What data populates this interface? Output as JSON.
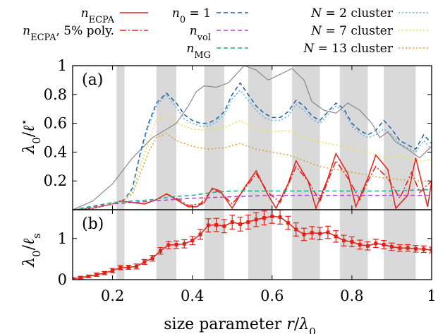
{
  "chart_data": [
    {
      "type": "line",
      "panel_label": "(a)",
      "xlabel": "size parameter r/λ0",
      "ylabel": "λ0/ℓ*",
      "xlim": [
        0.1,
        1.0
      ],
      "ylim": [
        0,
        1.0
      ],
      "yticks": [
        "0.2",
        "0.4",
        "0.6",
        "0.8",
        "1"
      ],
      "shaded_bands": [
        [
          0.21,
          0.23
        ],
        [
          0.31,
          0.36
        ],
        [
          0.43,
          0.48
        ],
        [
          0.54,
          0.6
        ],
        [
          0.65,
          0.72
        ],
        [
          0.77,
          0.84
        ],
        [
          0.88,
          0.96
        ]
      ],
      "legend": [
        {
          "label": "n_ECPA",
          "color": "#e32018",
          "style": "solid"
        },
        {
          "label": "n_ECPA, 5% poly.",
          "color": "#e32018",
          "style": "dashdot"
        },
        {
          "label": "n0 = 1",
          "color": "#1f5fa6",
          "style": "dashed"
        },
        {
          "label": "n_vol",
          "color": "#b03cd6",
          "style": "dashed"
        },
        {
          "label": "n_MG",
          "color": "#1da890",
          "style": "dashed"
        },
        {
          "label": "N = 2 cluster",
          "color": "#5aaee6",
          "style": "dotted"
        },
        {
          "label": "N = 7 cluster",
          "color": "#eedf40",
          "style": "dotted"
        },
        {
          "label": "N = 13 cluster",
          "color": "#e39a2a",
          "style": "dotted"
        }
      ],
      "series": [
        {
          "name": "n_ECPA",
          "color": "#e32018",
          "style": "solid",
          "x": [
            0.1,
            0.15,
            0.2,
            0.22,
            0.25,
            0.28,
            0.31,
            0.335,
            0.36,
            0.39,
            0.41,
            0.43,
            0.45,
            0.47,
            0.5,
            0.53,
            0.56,
            0.59,
            0.61,
            0.64,
            0.66,
            0.69,
            0.71,
            0.74,
            0.76,
            0.79,
            0.81,
            0.84,
            0.86,
            0.89,
            0.91,
            0.94,
            0.96,
            0.99,
            1.0
          ],
          "y": [
            0.0,
            0.01,
            0.04,
            0.06,
            0.05,
            0.04,
            0.07,
            0.11,
            0.07,
            0.02,
            0.02,
            0.05,
            0.15,
            0.13,
            0.01,
            0.15,
            0.27,
            0.1,
            0.01,
            0.18,
            0.34,
            0.2,
            0.01,
            0.22,
            0.39,
            0.25,
            0.02,
            0.22,
            0.38,
            0.28,
            0.01,
            0.1,
            0.36,
            0.02,
            0.2
          ]
        },
        {
          "name": "n_ECPA, 5% poly.",
          "color": "#e32018",
          "style": "dashdot",
          "x": [
            0.1,
            0.15,
            0.2,
            0.22,
            0.25,
            0.28,
            0.31,
            0.335,
            0.36,
            0.39,
            0.42,
            0.45,
            0.47,
            0.5,
            0.53,
            0.56,
            0.59,
            0.62,
            0.64,
            0.66,
            0.69,
            0.72,
            0.74,
            0.76,
            0.79,
            0.82,
            0.84,
            0.86,
            0.89,
            0.92,
            0.95,
            0.97,
            1.0
          ],
          "y": [
            0.0,
            0.01,
            0.04,
            0.06,
            0.05,
            0.04,
            0.07,
            0.11,
            0.08,
            0.03,
            0.04,
            0.14,
            0.12,
            0.04,
            0.14,
            0.25,
            0.12,
            0.05,
            0.17,
            0.3,
            0.2,
            0.06,
            0.2,
            0.34,
            0.22,
            0.07,
            0.2,
            0.3,
            0.22,
            0.08,
            0.26,
            0.12,
            0.2
          ]
        },
        {
          "name": "n0 = 1",
          "color": "#1f5fa6",
          "style": "dashed",
          "x": [
            0.1,
            0.15,
            0.2,
            0.23,
            0.25,
            0.27,
            0.29,
            0.31,
            0.335,
            0.36,
            0.38,
            0.4,
            0.42,
            0.44,
            0.46,
            0.48,
            0.5,
            0.52,
            0.54,
            0.56,
            0.58,
            0.6,
            0.62,
            0.64,
            0.66,
            0.68,
            0.7,
            0.72,
            0.74,
            0.76,
            0.78,
            0.8,
            0.82,
            0.84,
            0.86,
            0.88,
            0.9,
            0.92,
            0.94,
            0.96,
            0.98,
            1.0
          ],
          "y": [
            0.0,
            0.01,
            0.04,
            0.07,
            0.15,
            0.4,
            0.6,
            0.74,
            0.81,
            0.74,
            0.66,
            0.62,
            0.6,
            0.6,
            0.63,
            0.68,
            0.8,
            0.88,
            0.8,
            0.72,
            0.67,
            0.64,
            0.64,
            0.68,
            0.76,
            0.72,
            0.65,
            0.62,
            0.68,
            0.74,
            0.7,
            0.6,
            0.55,
            0.52,
            0.55,
            0.62,
            0.56,
            0.48,
            0.45,
            0.42,
            0.52,
            0.46
          ]
        },
        {
          "name": "n_vol",
          "color": "#b03cd6",
          "style": "dashed",
          "x": [
            0.1,
            0.2,
            0.25,
            0.3,
            0.35,
            0.4,
            0.5,
            0.6,
            0.7,
            0.8,
            0.9,
            1.0
          ],
          "y": [
            0.0,
            0.04,
            0.05,
            0.06,
            0.07,
            0.08,
            0.09,
            0.1,
            0.1,
            0.1,
            0.1,
            0.1
          ]
        },
        {
          "name": "n_MG",
          "color": "#1da890",
          "style": "dashed",
          "x": [
            0.1,
            0.2,
            0.25,
            0.3,
            0.35,
            0.4,
            0.45,
            0.5,
            0.6,
            0.7,
            0.8,
            0.9,
            1.0
          ],
          "y": [
            0.0,
            0.05,
            0.06,
            0.07,
            0.09,
            0.1,
            0.12,
            0.13,
            0.13,
            0.13,
            0.13,
            0.13,
            0.14
          ]
        },
        {
          "name": "N = 2 cluster",
          "color": "#5aaee6",
          "style": "dotted",
          "x": [
            0.1,
            0.15,
            0.2,
            0.23,
            0.25,
            0.27,
            0.29,
            0.31,
            0.335,
            0.36,
            0.38,
            0.4,
            0.42,
            0.44,
            0.46,
            0.48,
            0.5,
            0.52,
            0.54,
            0.56,
            0.58,
            0.6,
            0.62,
            0.64,
            0.66,
            0.68,
            0.7,
            0.72,
            0.74,
            0.76,
            0.78,
            0.8,
            0.82,
            0.84,
            0.86,
            0.88,
            0.9,
            0.92,
            0.94,
            0.96,
            0.98,
            1.0
          ],
          "y": [
            0.0,
            0.01,
            0.04,
            0.07,
            0.14,
            0.38,
            0.58,
            0.72,
            0.8,
            0.71,
            0.63,
            0.6,
            0.58,
            0.58,
            0.61,
            0.66,
            0.77,
            0.83,
            0.76,
            0.69,
            0.64,
            0.62,
            0.62,
            0.65,
            0.73,
            0.69,
            0.63,
            0.6,
            0.66,
            0.72,
            0.68,
            0.58,
            0.53,
            0.5,
            0.52,
            0.56,
            0.52,
            0.46,
            0.43,
            0.4,
            0.48,
            0.42
          ]
        },
        {
          "name": "N = 7 cluster",
          "color": "#eedf40",
          "style": "dotted",
          "x": [
            0.1,
            0.15,
            0.2,
            0.23,
            0.25,
            0.27,
            0.29,
            0.31,
            0.335,
            0.36,
            0.4,
            0.44,
            0.48,
            0.52,
            0.56,
            0.6,
            0.64,
            0.68,
            0.72,
            0.76,
            0.8,
            0.84,
            0.88,
            0.92,
            0.96,
            1.0
          ],
          "y": [
            0.0,
            0.01,
            0.04,
            0.07,
            0.12,
            0.3,
            0.48,
            0.62,
            0.66,
            0.6,
            0.56,
            0.55,
            0.57,
            0.62,
            0.56,
            0.54,
            0.55,
            0.5,
            0.47,
            0.45,
            0.42,
            0.4,
            0.36,
            0.38,
            0.33,
            0.35
          ]
        },
        {
          "name": "N = 13 cluster",
          "color": "#e39a2a",
          "style": "dotted",
          "x": [
            0.1,
            0.15,
            0.2,
            0.23,
            0.25,
            0.27,
            0.29,
            0.31,
            0.335,
            0.36,
            0.4,
            0.44,
            0.48,
            0.52,
            0.56,
            0.6,
            0.64,
            0.68,
            0.72,
            0.76,
            0.8,
            0.84,
            0.88,
            0.92,
            0.96,
            1.0
          ],
          "y": [
            0.0,
            0.01,
            0.04,
            0.07,
            0.11,
            0.25,
            0.4,
            0.5,
            0.53,
            0.48,
            0.44,
            0.42,
            0.43,
            0.46,
            0.42,
            0.4,
            0.38,
            0.34,
            0.3,
            0.28,
            0.26,
            0.24,
            0.22,
            0.21,
            0.2,
            0.2
          ]
        },
        {
          "name": "",
          "color": "#808080",
          "style": "solid",
          "x": [
            0.1,
            0.15,
            0.2,
            0.25,
            0.3,
            0.33,
            0.36,
            0.39,
            0.41,
            0.43,
            0.46,
            0.49,
            0.53,
            0.56,
            0.59,
            0.62,
            0.65,
            0.68,
            0.7,
            0.73,
            0.76,
            0.79,
            0.82,
            0.85,
            0.87,
            0.89,
            0.91,
            0.94,
            0.97,
            1.0
          ],
          "y": [
            0.0,
            0.06,
            0.18,
            0.36,
            0.5,
            0.55,
            0.6,
            0.72,
            0.82,
            0.86,
            0.85,
            0.88,
            1.0,
            0.97,
            0.9,
            0.94,
            0.98,
            0.9,
            0.75,
            0.69,
            0.67,
            0.74,
            0.69,
            0.6,
            0.5,
            0.54,
            0.47,
            0.42,
            0.36,
            0.44
          ]
        }
      ]
    },
    {
      "type": "line",
      "panel_label": "(b)",
      "xlabel": "size parameter r/λ0",
      "ylabel": "λ0/ℓs",
      "xlim": [
        0.1,
        1.0
      ],
      "ylim": [
        0,
        1.7
      ],
      "xticks": [
        "0.2",
        "0.4",
        "0.6",
        "0.8",
        "1"
      ],
      "yticks": [
        "0",
        "1"
      ],
      "shaded_bands": [
        [
          0.21,
          0.23
        ],
        [
          0.31,
          0.36
        ],
        [
          0.43,
          0.48
        ],
        [
          0.54,
          0.6
        ],
        [
          0.65,
          0.72
        ],
        [
          0.77,
          0.84
        ],
        [
          0.88,
          0.96
        ]
      ],
      "series": [
        {
          "name": "",
          "color": "#e32018",
          "style": "solid-markers-errorbars",
          "x": [
            0.1,
            0.12,
            0.14,
            0.16,
            0.18,
            0.2,
            0.22,
            0.24,
            0.26,
            0.28,
            0.3,
            0.32,
            0.34,
            0.36,
            0.38,
            0.4,
            0.42,
            0.44,
            0.46,
            0.48,
            0.5,
            0.52,
            0.54,
            0.56,
            0.58,
            0.6,
            0.62,
            0.64,
            0.66,
            0.68,
            0.7,
            0.72,
            0.74,
            0.76,
            0.78,
            0.8,
            0.82,
            0.84,
            0.86,
            0.88,
            0.9,
            0.92,
            0.94,
            0.96,
            0.98,
            1.0
          ],
          "y": [
            0.02,
            0.05,
            0.08,
            0.12,
            0.16,
            0.22,
            0.29,
            0.3,
            0.32,
            0.43,
            0.52,
            0.7,
            0.84,
            0.85,
            0.87,
            0.95,
            1.1,
            1.32,
            1.33,
            1.3,
            1.4,
            1.35,
            1.4,
            1.46,
            1.5,
            1.54,
            1.52,
            1.38,
            1.22,
            1.1,
            1.14,
            1.12,
            1.15,
            1.05,
            0.95,
            0.92,
            0.85,
            0.82,
            0.88,
            0.85,
            0.8,
            0.77,
            0.77,
            0.75,
            0.74,
            0.72
          ],
          "err": [
            0.02,
            0.03,
            0.03,
            0.04,
            0.04,
            0.05,
            0.05,
            0.05,
            0.06,
            0.06,
            0.07,
            0.08,
            0.09,
            0.09,
            0.1,
            0.1,
            0.12,
            0.16,
            0.16,
            0.16,
            0.17,
            0.17,
            0.17,
            0.17,
            0.17,
            0.17,
            0.17,
            0.16,
            0.16,
            0.15,
            0.15,
            0.15,
            0.15,
            0.14,
            0.13,
            0.12,
            0.11,
            0.1,
            0.1,
            0.1,
            0.09,
            0.08,
            0.08,
            0.08,
            0.08,
            0.07
          ]
        }
      ]
    }
  ]
}
